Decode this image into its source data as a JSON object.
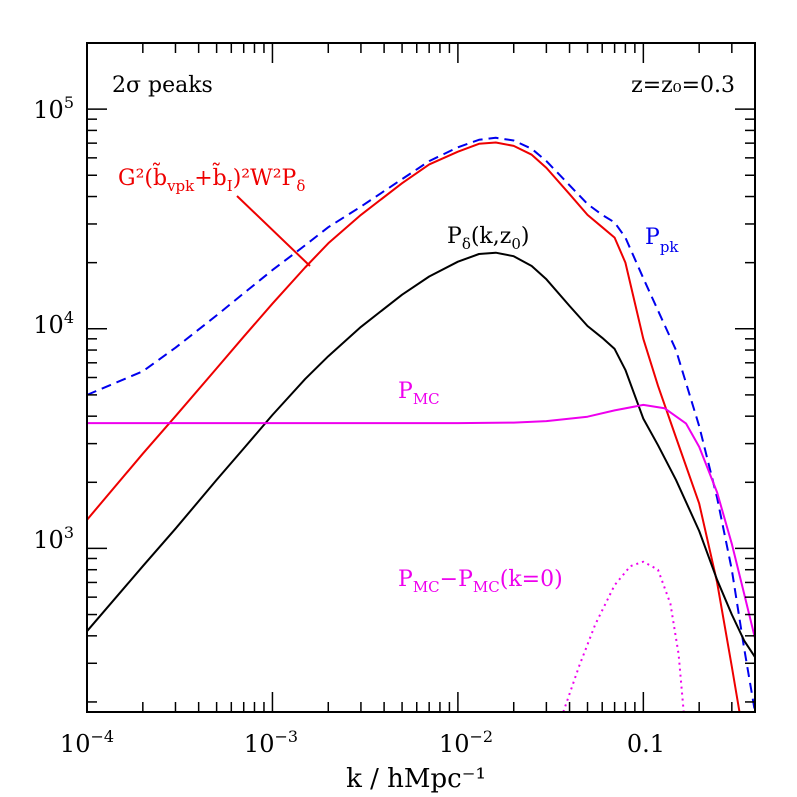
{
  "chart_data": {
    "type": "line",
    "xscale": "log",
    "yscale": "log",
    "xlim": [
      0.0001,
      0.4
    ],
    "ylim": [
      180,
      200000
    ],
    "xlabel": "k / hMpc⁻¹",
    "ylabel": "",
    "grid": false,
    "x_ticks": [
      {
        "value": 0.0001,
        "base": "10",
        "exp": "−4",
        "plain": ""
      },
      {
        "value": 0.001,
        "base": "10",
        "exp": "−3",
        "plain": ""
      },
      {
        "value": 0.01,
        "base": "10",
        "exp": "−2",
        "plain": ""
      },
      {
        "value": 0.1,
        "base": "",
        "exp": "",
        "plain": "0.1"
      }
    ],
    "y_ticks": [
      {
        "value": 1000,
        "base": "10",
        "exp": "3"
      },
      {
        "value": 10000,
        "base": "10",
        "exp": "4"
      },
      {
        "value": 100000,
        "base": "10",
        "exp": "5"
      }
    ],
    "annotations": {
      "top_left": "2σ peaks",
      "top_right": "z=z₀=0.3"
    },
    "series": [
      {
        "name": "P_pk",
        "color": "#0000ee",
        "dash": "dashed",
        "points": [
          [
            0.0001,
            5000
          ],
          [
            0.0002,
            6400
          ],
          [
            0.0003,
            8200
          ],
          [
            0.0005,
            11500
          ],
          [
            0.0007,
            14500
          ],
          [
            0.001,
            18500
          ],
          [
            0.0015,
            24000
          ],
          [
            0.002,
            29000
          ],
          [
            0.003,
            36000
          ],
          [
            0.005,
            48000
          ],
          [
            0.007,
            58000
          ],
          [
            0.01,
            67000
          ],
          [
            0.013,
            72500
          ],
          [
            0.016,
            74000
          ],
          [
            0.02,
            72000
          ],
          [
            0.025,
            66000
          ],
          [
            0.03,
            58000
          ],
          [
            0.04,
            45000
          ],
          [
            0.05,
            37000
          ],
          [
            0.06,
            33000
          ],
          [
            0.07,
            30500
          ],
          [
            0.08,
            26000
          ],
          [
            0.1,
            17000
          ],
          [
            0.15,
            8000
          ],
          [
            0.2,
            3600
          ],
          [
            0.25,
            1700
          ],
          [
            0.3,
            800
          ],
          [
            0.35,
            350
          ],
          [
            0.4,
            180
          ]
        ]
      },
      {
        "name": "G²(b̃_vpk+b̃_I)²W²P_δ",
        "color": "#ee0000",
        "dash": "solid",
        "points": [
          [
            0.0001,
            1350
          ],
          [
            0.0002,
            2700
          ],
          [
            0.0003,
            4000
          ],
          [
            0.0005,
            6600
          ],
          [
            0.0007,
            9200
          ],
          [
            0.001,
            13000
          ],
          [
            0.0015,
            19000
          ],
          [
            0.002,
            24500
          ],
          [
            0.003,
            33000
          ],
          [
            0.005,
            46000
          ],
          [
            0.007,
            56000
          ],
          [
            0.01,
            64000
          ],
          [
            0.013,
            69500
          ],
          [
            0.016,
            70500
          ],
          [
            0.02,
            68000
          ],
          [
            0.025,
            62000
          ],
          [
            0.03,
            54000
          ],
          [
            0.04,
            41000
          ],
          [
            0.05,
            33000
          ],
          [
            0.06,
            29000
          ],
          [
            0.07,
            26000
          ],
          [
            0.08,
            20000
          ],
          [
            0.1,
            9000
          ],
          [
            0.12,
            5500
          ],
          [
            0.15,
            3200
          ],
          [
            0.2,
            1600
          ],
          [
            0.25,
            700
          ],
          [
            0.3,
            290
          ],
          [
            0.33,
            180
          ]
        ]
      },
      {
        "name": "P_δ(k,z₀)",
        "color": "#000000",
        "dash": "solid",
        "points": [
          [
            0.0001,
            420
          ],
          [
            0.0002,
            830
          ],
          [
            0.0003,
            1230
          ],
          [
            0.0005,
            2050
          ],
          [
            0.0007,
            2850
          ],
          [
            0.001,
            4050
          ],
          [
            0.0015,
            5900
          ],
          [
            0.002,
            7500
          ],
          [
            0.003,
            10200
          ],
          [
            0.005,
            14300
          ],
          [
            0.007,
            17300
          ],
          [
            0.01,
            20200
          ],
          [
            0.013,
            21900
          ],
          [
            0.016,
            22200
          ],
          [
            0.02,
            21400
          ],
          [
            0.025,
            19300
          ],
          [
            0.03,
            16800
          ],
          [
            0.04,
            12700
          ],
          [
            0.05,
            10300
          ],
          [
            0.06,
            9100
          ],
          [
            0.07,
            8100
          ],
          [
            0.08,
            6500
          ],
          [
            0.1,
            3900
          ],
          [
            0.12,
            2950
          ],
          [
            0.15,
            2050
          ],
          [
            0.2,
            1200
          ],
          [
            0.25,
            720
          ],
          [
            0.3,
            500
          ],
          [
            0.35,
            380
          ],
          [
            0.4,
            320
          ]
        ]
      },
      {
        "name": "P_MC",
        "color": "#ee00ee",
        "dash": "solid",
        "points": [
          [
            0.0001,
            3720
          ],
          [
            0.001,
            3720
          ],
          [
            0.01,
            3720
          ],
          [
            0.02,
            3740
          ],
          [
            0.03,
            3800
          ],
          [
            0.05,
            3980
          ],
          [
            0.07,
            4250
          ],
          [
            0.1,
            4500
          ],
          [
            0.13,
            4350
          ],
          [
            0.17,
            3700
          ],
          [
            0.2,
            2900
          ],
          [
            0.25,
            1800
          ],
          [
            0.3,
            1050
          ],
          [
            0.35,
            620
          ],
          [
            0.4,
            390
          ]
        ]
      },
      {
        "name": "P_MC−P_MC(k=0)",
        "color": "#ee00ee",
        "dash": "dotted",
        "points": [
          [
            0.037,
            180
          ],
          [
            0.045,
            290
          ],
          [
            0.055,
            450
          ],
          [
            0.07,
            680
          ],
          [
            0.085,
            830
          ],
          [
            0.1,
            870
          ],
          [
            0.12,
            800
          ],
          [
            0.14,
            560
          ],
          [
            0.155,
            330
          ],
          [
            0.165,
            180
          ]
        ]
      }
    ],
    "curve_labels": {
      "red": {
        "main": "G²(b̃",
        "sub1": "vpk",
        "mid": "+b̃",
        "sub2": "I",
        "tail": ")²W²P",
        "sub3": "δ"
      },
      "black": {
        "main": "P",
        "sub1": "δ",
        "tail": "(k,z",
        "sub2": "0",
        "end": ")"
      },
      "blue": {
        "main": "P",
        "sub": "pk"
      },
      "magenta": {
        "main": "P",
        "sub": "MC"
      },
      "magenta_dotted": {
        "p1": "P",
        "s1": "MC",
        "mid": "−P",
        "s2": "MC",
        "tail": "(k=0)"
      }
    }
  }
}
